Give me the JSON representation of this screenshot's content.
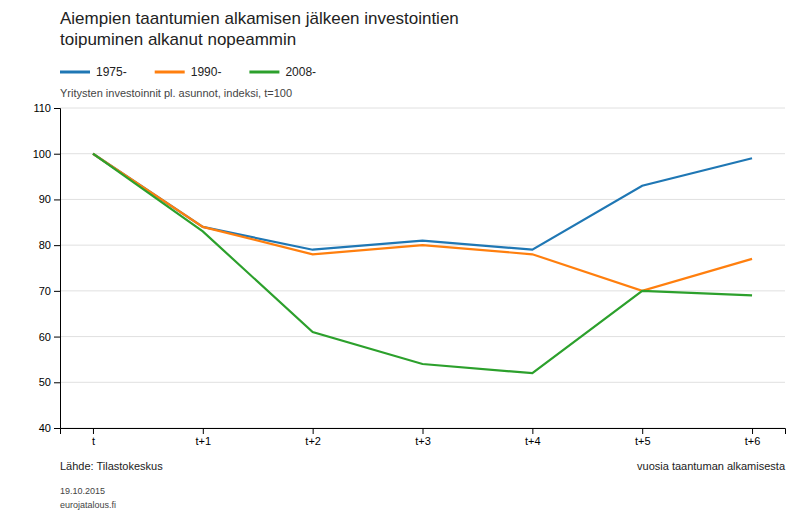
{
  "chart_data": {
    "type": "line",
    "title": "Aiempien taantumien alkamisen jälkeen investointien\ntoipuminen alkanut nopeammin",
    "subtitle": "Yritysten investoinnit pl. asunnot, indeksi, t=100",
    "x_label": "vuosia taantuman alkamisesta",
    "annotations": [
      "Lähde: Tilastokeskus",
      "19.10.2015\neurojatalous.fi"
    ],
    "categories": [
      "t",
      "t+1",
      "t+2",
      "t+3",
      "t+4",
      "t+5",
      "t+6"
    ],
    "series": [
      {
        "name": "1975-",
        "values": [
          100,
          84,
          79,
          81,
          79,
          93,
          99
        ]
      },
      {
        "name": "1990-",
        "values": [
          100,
          84,
          78,
          80,
          78,
          70,
          77
        ]
      },
      {
        "name": "2008-",
        "values": [
          100,
          83,
          61,
          54,
          52,
          70,
          69
        ]
      }
    ],
    "ylim": [
      40,
      110
    ],
    "yticks": [
      40,
      50,
      60,
      70,
      80,
      90,
      100,
      110
    ],
    "grid": true,
    "legend": "top-left"
  }
}
